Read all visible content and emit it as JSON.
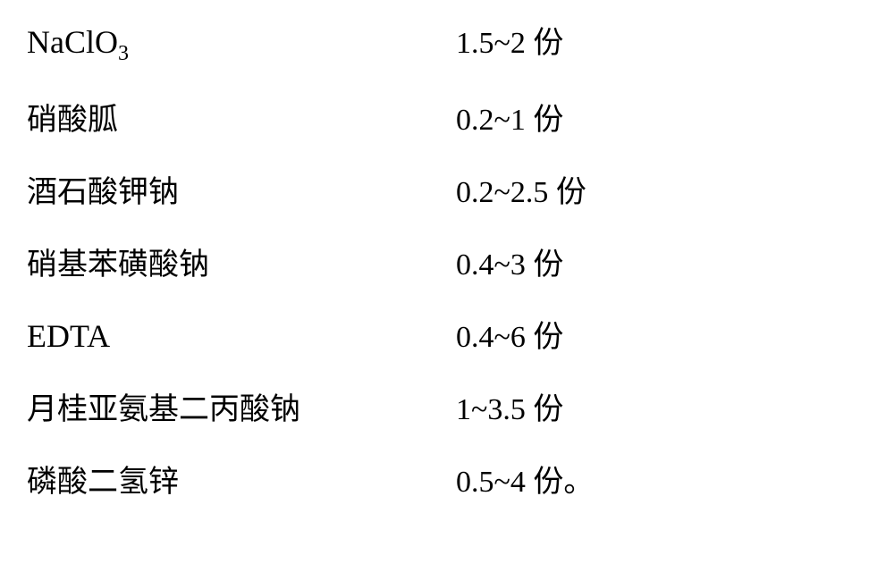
{
  "rows": [
    {
      "label_html": "<span class='roman'>NaClO<sub>3</sub></span>",
      "value": "1.5~2 份",
      "label_class": ""
    },
    {
      "label_html": "硝酸胍",
      "value": "0.2~1 份",
      "label_class": "chinese-italic"
    },
    {
      "label_html": "酒石酸钾钠",
      "value": "0.2~2.5 份",
      "label_class": "chinese-italic"
    },
    {
      "label_html": "硝基苯磺酸钠",
      "value": "0.4~3 份",
      "label_class": "chinese-italic"
    },
    {
      "label_html": "<span class='roman'>EDTA</span>",
      "value": "0.4~6 份",
      "label_class": ""
    },
    {
      "label_html": "月桂亚氨基二丙酸钠",
      "value": "1~3.5 份",
      "label_class": "chinese-italic"
    },
    {
      "label_html": "磷酸二氢锌",
      "value": "0.5~4 份。",
      "label_class": "chinese-italic"
    }
  ],
  "styling": {
    "background_color": "#ffffff",
    "text_color": "#000000",
    "font_size": 34,
    "label_width": 480,
    "row_spacing": 32
  }
}
